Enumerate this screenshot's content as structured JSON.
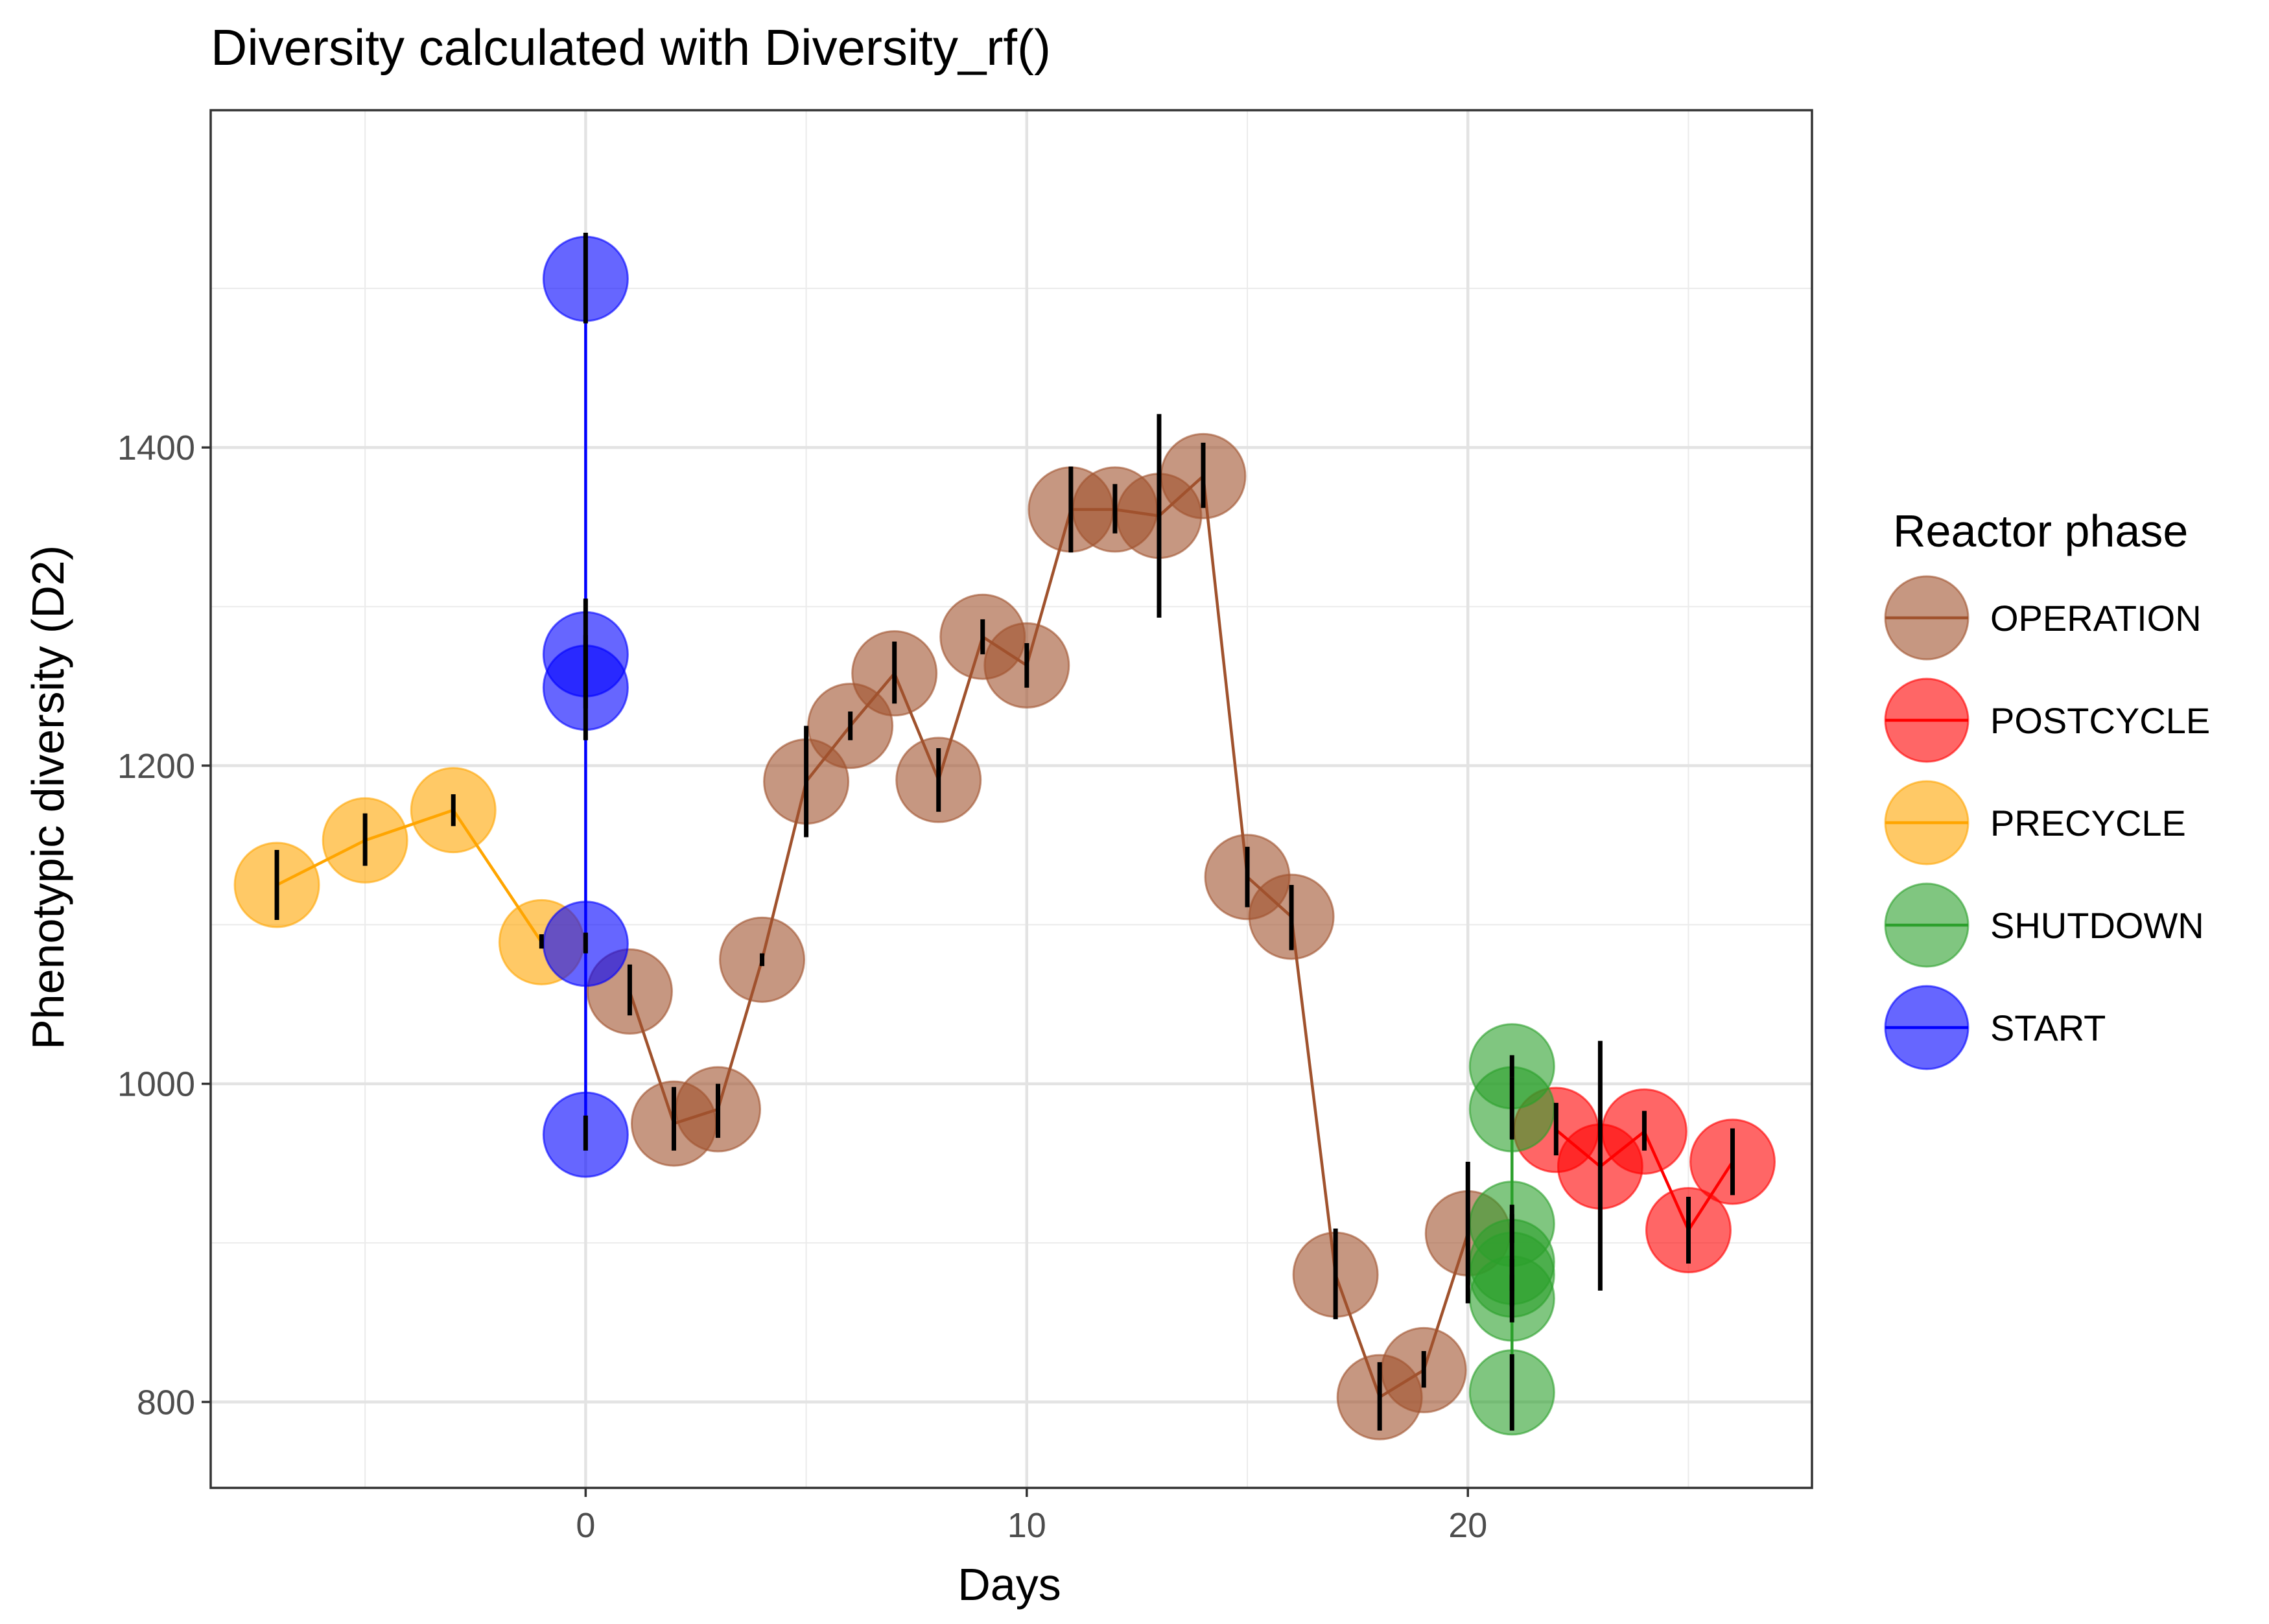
{
  "chart_data": {
    "type": "scatter",
    "title": "Diversity calculated with Diversity_rf()",
    "xlabel": "Days",
    "ylabel": "Phenotypic diversity (D2)",
    "xlim": [
      -8.5,
      27.8
    ],
    "ylim": [
      746,
      1612
    ],
    "x_ticks": [
      0,
      10,
      20
    ],
    "y_ticks": [
      800,
      1000,
      1200,
      1400
    ],
    "grid": true,
    "legend": {
      "title": "Reactor phase",
      "position": "right"
    },
    "series": [
      {
        "name": "OPERATION",
        "color": "#A0522D",
        "points": [
          {
            "x": 1,
            "y": 1058,
            "ymin": 1043,
            "ymax": 1075
          },
          {
            "x": 2,
            "y": 975,
            "ymin": 958,
            "ymax": 998
          },
          {
            "x": 3,
            "y": 984,
            "ymin": 966,
            "ymax": 1000
          },
          {
            "x": 4,
            "y": 1078,
            "ymin": 1074,
            "ymax": 1082
          },
          {
            "x": 5,
            "y": 1190,
            "ymin": 1155,
            "ymax": 1225
          },
          {
            "x": 6,
            "y": 1225,
            "ymin": 1216,
            "ymax": 1234
          },
          {
            "x": 7,
            "y": 1258,
            "ymin": 1239,
            "ymax": 1278
          },
          {
            "x": 8,
            "y": 1191,
            "ymin": 1171,
            "ymax": 1211
          },
          {
            "x": 9,
            "y": 1281,
            "ymin": 1270,
            "ymax": 1292
          },
          {
            "x": 10,
            "y": 1263,
            "ymin": 1249,
            "ymax": 1277
          },
          {
            "x": 11,
            "y": 1361,
            "ymin": 1334,
            "ymax": 1388
          },
          {
            "x": 12,
            "y": 1361,
            "ymin": 1346,
            "ymax": 1377
          },
          {
            "x": 13,
            "y": 1357,
            "ymin": 1293,
            "ymax": 1421
          },
          {
            "x": 14,
            "y": 1382,
            "ymin": 1362,
            "ymax": 1403
          },
          {
            "x": 15,
            "y": 1130,
            "ymin": 1111,
            "ymax": 1149
          },
          {
            "x": 16,
            "y": 1105,
            "ymin": 1084,
            "ymax": 1125
          },
          {
            "x": 17,
            "y": 880,
            "ymin": 852,
            "ymax": 909
          },
          {
            "x": 18,
            "y": 803,
            "ymin": 782,
            "ymax": 825
          },
          {
            "x": 19,
            "y": 820,
            "ymin": 809,
            "ymax": 832
          },
          {
            "x": 20,
            "y": 906,
            "ymin": 862,
            "ymax": 951
          }
        ]
      },
      {
        "name": "POSTCYCLE",
        "color": "#FF0000",
        "points": [
          {
            "x": 22,
            "y": 971,
            "ymin": 955,
            "ymax": 988
          },
          {
            "x": 23,
            "y": 948,
            "ymin": 870,
            "ymax": 1027
          },
          {
            "x": 24,
            "y": 970,
            "ymin": 958,
            "ymax": 983
          },
          {
            "x": 25,
            "y": 908,
            "ymin": 887,
            "ymax": 929
          },
          {
            "x": 26,
            "y": 951,
            "ymin": 930,
            "ymax": 972
          }
        ]
      },
      {
        "name": "PRECYCLE",
        "color": "#FFA500",
        "points": [
          {
            "x": -7,
            "y": 1125,
            "ymin": 1103,
            "ymax": 1147
          },
          {
            "x": -5,
            "y": 1153,
            "ymin": 1137,
            "ymax": 1170
          },
          {
            "x": -3,
            "y": 1172,
            "ymin": 1162,
            "ymax": 1182
          },
          {
            "x": -1,
            "y": 1089,
            "ymin": 1085,
            "ymax": 1094
          }
        ]
      },
      {
        "name": "SHUTDOWN",
        "color": "#2CA02C",
        "points": [
          {
            "x": 21,
            "y": 1011,
            "ymin": 1004,
            "ymax": 1018
          },
          {
            "x": 21,
            "y": 984,
            "ymin": 965,
            "ymax": 1004
          },
          {
            "x": 21,
            "y": 912,
            "ymin": 900,
            "ymax": 924
          },
          {
            "x": 21,
            "y": 888,
            "ymin": 860,
            "ymax": 918
          },
          {
            "x": 21,
            "y": 880,
            "ymin": 870,
            "ymax": 890
          },
          {
            "x": 21,
            "y": 865,
            "ymin": 850,
            "ymax": 880
          },
          {
            "x": 21,
            "y": 806,
            "ymin": 782,
            "ymax": 830
          }
        ]
      },
      {
        "name": "START",
        "color": "#0000FF",
        "points": [
          {
            "x": 0,
            "y": 1506,
            "ymin": 1478,
            "ymax": 1535
          },
          {
            "x": 0,
            "y": 1270,
            "ymin": 1236,
            "ymax": 1305
          },
          {
            "x": 0,
            "y": 1249,
            "ymin": 1216,
            "ymax": 1282
          },
          {
            "x": 0,
            "y": 1088,
            "ymin": 1082,
            "ymax": 1095
          },
          {
            "x": 0,
            "y": 968,
            "ymin": 958,
            "ymax": 980
          }
        ]
      }
    ]
  }
}
